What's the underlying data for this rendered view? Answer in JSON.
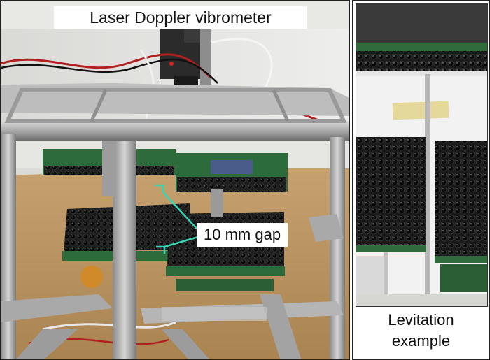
{
  "main_photo": {
    "title_label": "Laser Doppler vibrometer",
    "gap_label": "10 mm gap",
    "annotation_color": "#36d6b2"
  },
  "side_panel": {
    "caption_line1": "Levitation",
    "caption_line2": "example"
  }
}
